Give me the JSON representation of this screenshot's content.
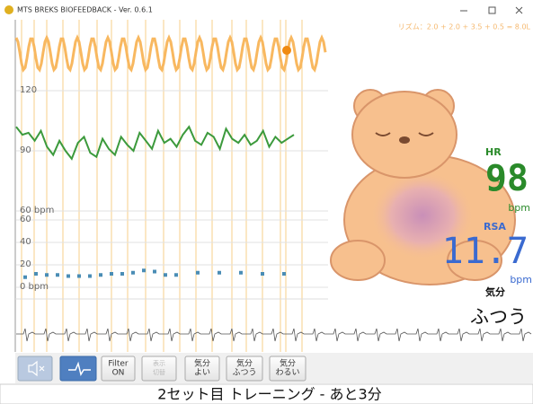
{
  "window": {
    "title": "MTS BREKS BIOFEEDBACK - Ver. 0.6.1"
  },
  "rhythm_label": "リズム：2.0 + 2.0 + 3.5 + 0.5 = 8.0L",
  "hr_chart": {
    "ylim": [
      60,
      120
    ],
    "yticks": [
      120,
      90,
      {
        "value": 60,
        "label": "60 bpm"
      }
    ],
    "color": "#3c9a3c",
    "values": [
      102,
      98,
      99,
      95,
      100,
      92,
      88,
      95,
      90,
      86,
      94,
      97,
      89,
      87,
      96,
      91,
      88,
      97,
      93,
      90,
      99,
      95,
      91,
      100,
      94,
      96,
      92,
      98,
      102,
      95,
      93,
      99,
      97,
      91,
      101,
      96,
      94,
      98,
      93,
      95,
      100,
      92,
      97,
      94,
      96,
      98
    ]
  },
  "rsa_chart": {
    "ylim": [
      0,
      60
    ],
    "yticks": [
      60,
      40,
      20,
      {
        "value": 0,
        "label": "0 bpm"
      }
    ],
    "color": "#4a8db5",
    "values": [
      9,
      12,
      11,
      11,
      10,
      10,
      10,
      11,
      12,
      12,
      13,
      15,
      14,
      11,
      11,
      null,
      13,
      null,
      13,
      null,
      13,
      null,
      12,
      null,
      12
    ]
  },
  "panel": {
    "hr_label": "HR",
    "hr_value": 98,
    "hr_unit": "bpm",
    "rsa_label": "RSA",
    "rsa_value": 11.7,
    "rsa_unit": "bpm",
    "mood_label": "気分",
    "mood_value": "ふつう"
  },
  "buttons": [
    [
      "Filter",
      "ON"
    ],
    [
      "表示",
      "切替"
    ],
    [
      "気分",
      "よい"
    ],
    [
      "気分",
      "ふつう"
    ],
    [
      "気分",
      "わるい"
    ]
  ],
  "status": "2セット目 トレーニング - あと3分"
}
